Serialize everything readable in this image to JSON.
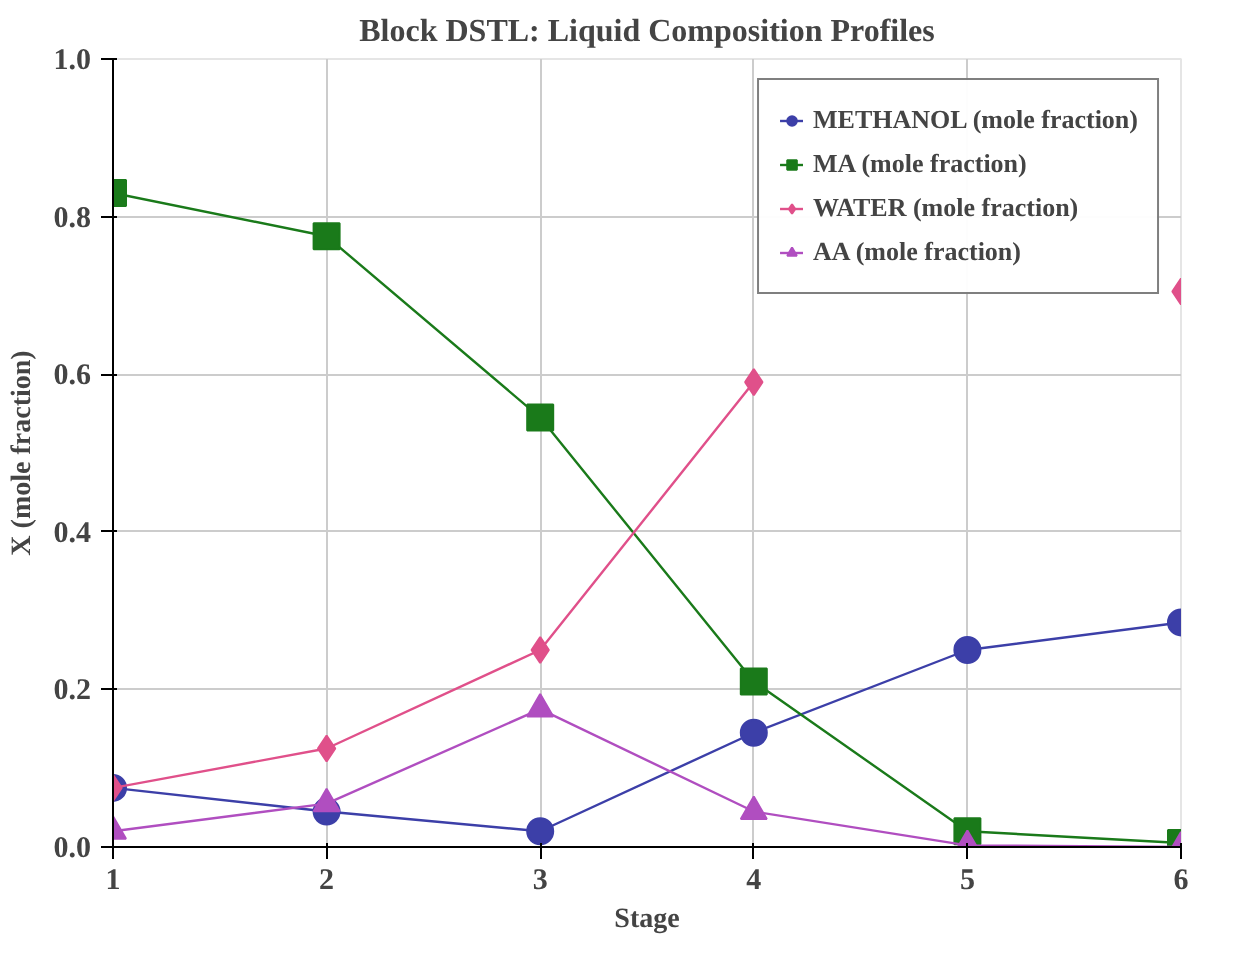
{
  "chart_data": {
    "type": "line",
    "title": "Block DSTL: Liquid Composition Profiles",
    "xlabel": "Stage",
    "ylabel": "X (mole fraction)",
    "x": [
      1,
      2,
      3,
      4,
      5,
      6
    ],
    "series": [
      {
        "name": "METHANOL (mole fraction)",
        "color": "#3c3fa8",
        "marker": "circle",
        "values": [
          0.075,
          0.045,
          0.02,
          0.145,
          0.25,
          0.285
        ]
      },
      {
        "name": "MA (mole fraction)",
        "color": "#1a7a1a",
        "marker": "square",
        "values": [
          0.83,
          0.775,
          0.545,
          0.21,
          0.02,
          0.005
        ]
      },
      {
        "name": "WATER (mole fraction)",
        "color": "#e0508a",
        "marker": "diamond",
        "values": [
          0.075,
          0.125,
          0.25,
          0.59,
          null,
          0.705
        ]
      },
      {
        "name": "AA (mole fraction)",
        "color": "#b04ec0",
        "marker": "triangle",
        "values": [
          0.02,
          0.055,
          0.175,
          0.045,
          0.002,
          0.0
        ]
      }
    ],
    "xlim": [
      1,
      6
    ],
    "xticks": [
      1,
      2,
      3,
      4,
      5,
      6
    ],
    "ylim": [
      0,
      1
    ],
    "yticks": [
      {
        "value": 0,
        "label": "0.0"
      },
      0.2,
      0.4,
      0.6,
      0.8,
      {
        "value": 1,
        "label": "1.0"
      }
    ],
    "grid": true,
    "legend": "top right"
  }
}
